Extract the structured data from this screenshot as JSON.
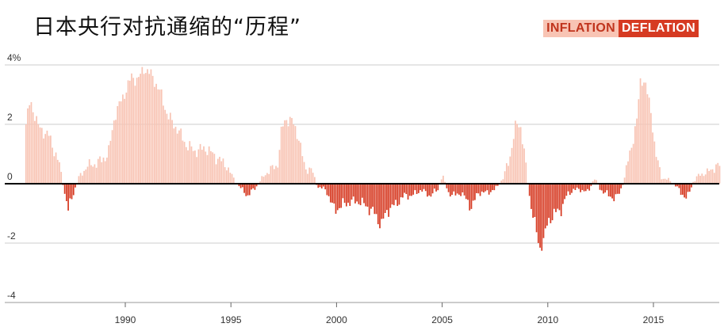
{
  "title": "日本央行对抗通缩的“历程”",
  "legend": {
    "inflation": "INFLATION",
    "deflation": "DEFLATION"
  },
  "colors": {
    "inflation": "#f8c4b4",
    "deflation": "#d63a22",
    "grid": "#cccccc",
    "zero": "#000000"
  },
  "chart_data": {
    "type": "bar",
    "title": "日本央行对抗通缩的“历程”",
    "xlabel": "",
    "ylabel": "",
    "ylim": [
      -4,
      4.2
    ],
    "y_ticks": [
      "4%",
      "2",
      "0",
      "-2",
      "-4"
    ],
    "y_tick_values": [
      4,
      2,
      0,
      -2,
      -4
    ],
    "x_ticks": [
      "1990",
      "1995",
      "2000",
      "2005",
      "2010",
      "2015"
    ],
    "x_tick_values": [
      1990,
      1995,
      2000,
      2005,
      2010,
      2015
    ],
    "xlim": [
      1985.3,
      2018.1
    ],
    "grid": true,
    "legend_position": "top-right",
    "frequency": "monthly",
    "x_start": "1985-05",
    "anchors": [
      [
        1985.3,
        2.0
      ],
      [
        1985.5,
        2.8
      ],
      [
        1985.9,
        1.9
      ],
      [
        1986.4,
        1.6
      ],
      [
        1986.9,
        0.6
      ],
      [
        1987.1,
        -0.2
      ],
      [
        1987.3,
        -0.9
      ],
      [
        1987.5,
        -0.4
      ],
      [
        1987.8,
        0.2
      ],
      [
        1988.2,
        0.6
      ],
      [
        1988.7,
        0.7
      ],
      [
        1989.2,
        1.0
      ],
      [
        1989.5,
        2.3
      ],
      [
        1990.0,
        3.1
      ],
      [
        1990.3,
        3.6
      ],
      [
        1990.6,
        3.5
      ],
      [
        1990.9,
        3.9
      ],
      [
        1991.3,
        3.6
      ],
      [
        1991.7,
        3.0
      ],
      [
        1992.0,
        2.3
      ],
      [
        1992.5,
        1.8
      ],
      [
        1992.9,
        1.3
      ],
      [
        1993.3,
        1.1
      ],
      [
        1993.8,
        1.2
      ],
      [
        1994.3,
        0.9
      ],
      [
        1994.8,
        0.6
      ],
      [
        1995.1,
        0.2
      ],
      [
        1995.4,
        -0.1
      ],
      [
        1995.8,
        -0.4
      ],
      [
        1996.2,
        -0.1
      ],
      [
        1996.6,
        0.3
      ],
      [
        1996.9,
        0.5
      ],
      [
        1997.2,
        0.6
      ],
      [
        1997.4,
        1.8
      ],
      [
        1997.6,
        2.2
      ],
      [
        1997.9,
        2.1
      ],
      [
        1998.2,
        1.6
      ],
      [
        1998.5,
        0.5
      ],
      [
        1998.8,
        0.5
      ],
      [
        1999.1,
        -0.1
      ],
      [
        1999.5,
        -0.2
      ],
      [
        1999.9,
        -0.9
      ],
      [
        2000.3,
        -0.7
      ],
      [
        2000.7,
        -0.6
      ],
      [
        2001.1,
        -0.6
      ],
      [
        2001.5,
        -0.8
      ],
      [
        2001.8,
        -1.0
      ],
      [
        2002.1,
        -1.4
      ],
      [
        2002.4,
        -0.9
      ],
      [
        2002.8,
        -0.7
      ],
      [
        2003.2,
        -0.4
      ],
      [
        2003.6,
        -0.4
      ],
      [
        2004.0,
        -0.2
      ],
      [
        2004.4,
        -0.4
      ],
      [
        2004.8,
        -0.2
      ],
      [
        2005.0,
        0.3
      ],
      [
        2005.3,
        -0.3
      ],
      [
        2005.6,
        -0.4
      ],
      [
        2005.9,
        -0.3
      ],
      [
        2006.2,
        -0.6
      ],
      [
        2006.4,
        -0.8
      ],
      [
        2006.7,
        -0.3
      ],
      [
        2007.1,
        -0.3
      ],
      [
        2007.5,
        -0.2
      ],
      [
        2007.9,
        0.2
      ],
      [
        2008.2,
        0.9
      ],
      [
        2008.5,
        2.0
      ],
      [
        2008.7,
        2.0
      ],
      [
        2008.9,
        1.0
      ],
      [
        2009.1,
        -0.3
      ],
      [
        2009.4,
        -1.4
      ],
      [
        2009.6,
        -2.2
      ],
      [
        2009.8,
        -1.9
      ],
      [
        2010.0,
        -1.3
      ],
      [
        2010.3,
        -1.0
      ],
      [
        2010.6,
        -0.9
      ],
      [
        2010.9,
        -0.4
      ],
      [
        2011.2,
        -0.2
      ],
      [
        2011.6,
        -0.2
      ],
      [
        2011.9,
        -0.3
      ],
      [
        2012.2,
        0.2
      ],
      [
        2012.5,
        -0.2
      ],
      [
        2012.9,
        -0.4
      ],
      [
        2013.2,
        -0.5
      ],
      [
        2013.4,
        -0.3
      ],
      [
        2013.6,
        0.1
      ],
      [
        2013.9,
        1.1
      ],
      [
        2014.2,
        2.0
      ],
      [
        2014.4,
        3.6
      ],
      [
        2014.6,
        3.4
      ],
      [
        2014.9,
        2.4
      ],
      [
        2015.1,
        1.0
      ],
      [
        2015.4,
        0.2
      ],
      [
        2015.8,
        0.1
      ],
      [
        2016.1,
        -0.1
      ],
      [
        2016.3,
        -0.3
      ],
      [
        2016.6,
        -0.5
      ],
      [
        2016.9,
        0.1
      ],
      [
        2017.2,
        0.3
      ],
      [
        2017.6,
        0.4
      ],
      [
        2018.0,
        0.6
      ]
    ]
  }
}
